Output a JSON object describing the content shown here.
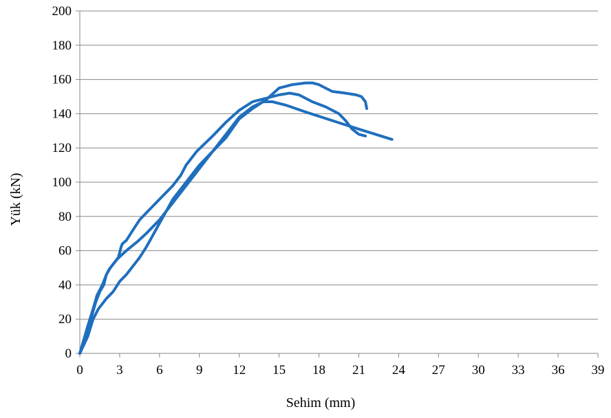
{
  "chart_data": {
    "type": "line",
    "title": "",
    "xlabel": "Sehim (mm)",
    "ylabel": "Yük (kN)",
    "xlim": [
      0,
      39
    ],
    "ylim": [
      0,
      200
    ],
    "xticks": [
      0,
      3,
      6,
      9,
      12,
      15,
      18,
      21,
      24,
      27,
      30,
      33,
      36,
      39
    ],
    "yticks": [
      0,
      20,
      40,
      60,
      80,
      100,
      120,
      140,
      160,
      180,
      200
    ],
    "grid": "horizontal",
    "legend": "none",
    "line_color": "#1f6fbd",
    "series": [
      {
        "points": [
          [
            0,
            0
          ],
          [
            0.3,
            8
          ],
          [
            0.6,
            16
          ],
          [
            1.0,
            26
          ],
          [
            1.3,
            34
          ],
          [
            1.7,
            40
          ],
          [
            2.0,
            46
          ],
          [
            2.3,
            50
          ],
          [
            2.8,
            55
          ],
          [
            3.5,
            60
          ],
          [
            4.3,
            65
          ],
          [
            5.0,
            70
          ],
          [
            6.0,
            78
          ],
          [
            7.0,
            88
          ],
          [
            8.0,
            98
          ],
          [
            9.0,
            108
          ],
          [
            10.0,
            118
          ],
          [
            11.0,
            128
          ],
          [
            12.0,
            138
          ],
          [
            13.0,
            144
          ],
          [
            13.8,
            147
          ],
          [
            14.5,
            147
          ],
          [
            15.5,
            145
          ],
          [
            17.0,
            141
          ],
          [
            19.0,
            136
          ],
          [
            21.0,
            131
          ],
          [
            23.5,
            125
          ]
        ]
      },
      {
        "points": [
          [
            0,
            0
          ],
          [
            0.5,
            12
          ],
          [
            0.9,
            22
          ],
          [
            1.2,
            30
          ],
          [
            1.5,
            36
          ],
          [
            1.8,
            40
          ],
          [
            2.0,
            46
          ],
          [
            2.2,
            49
          ],
          [
            2.5,
            52
          ],
          [
            2.9,
            56
          ],
          [
            3.1,
            62
          ],
          [
            3.2,
            64
          ],
          [
            3.5,
            66
          ],
          [
            4.0,
            72
          ],
          [
            4.5,
            78
          ],
          [
            5.0,
            82
          ],
          [
            6.0,
            90
          ],
          [
            7.0,
            98
          ],
          [
            7.6,
            104
          ],
          [
            8.0,
            110
          ],
          [
            8.8,
            118
          ],
          [
            10.0,
            127
          ],
          [
            11.0,
            135
          ],
          [
            12.0,
            142
          ],
          [
            13.0,
            147
          ],
          [
            14.0,
            149
          ],
          [
            15.0,
            151
          ],
          [
            15.8,
            152
          ],
          [
            16.5,
            151
          ],
          [
            17.5,
            147
          ],
          [
            18.5,
            144
          ],
          [
            19.5,
            140
          ],
          [
            20.0,
            136
          ],
          [
            20.5,
            131
          ],
          [
            21.0,
            128
          ],
          [
            21.5,
            127
          ]
        ]
      },
      {
        "points": [
          [
            0,
            0
          ],
          [
            0.6,
            10
          ],
          [
            1.0,
            20
          ],
          [
            1.4,
            26
          ],
          [
            2.0,
            32
          ],
          [
            2.5,
            36
          ],
          [
            3.0,
            42
          ],
          [
            3.5,
            46
          ],
          [
            4.5,
            56
          ],
          [
            5.0,
            62
          ],
          [
            6.0,
            76
          ],
          [
            7.0,
            90
          ],
          [
            8.0,
            100
          ],
          [
            9.0,
            110
          ],
          [
            10.0,
            118
          ],
          [
            11.0,
            126
          ],
          [
            12.0,
            137
          ],
          [
            13.0,
            143
          ],
          [
            14.0,
            148
          ],
          [
            15.0,
            155
          ],
          [
            16.0,
            157
          ],
          [
            17.0,
            158
          ],
          [
            17.5,
            158
          ],
          [
            18.0,
            157
          ],
          [
            18.5,
            155
          ],
          [
            19.0,
            153
          ],
          [
            20.0,
            152
          ],
          [
            20.8,
            151
          ],
          [
            21.2,
            150
          ],
          [
            21.5,
            147
          ],
          [
            21.6,
            143
          ]
        ]
      }
    ]
  }
}
